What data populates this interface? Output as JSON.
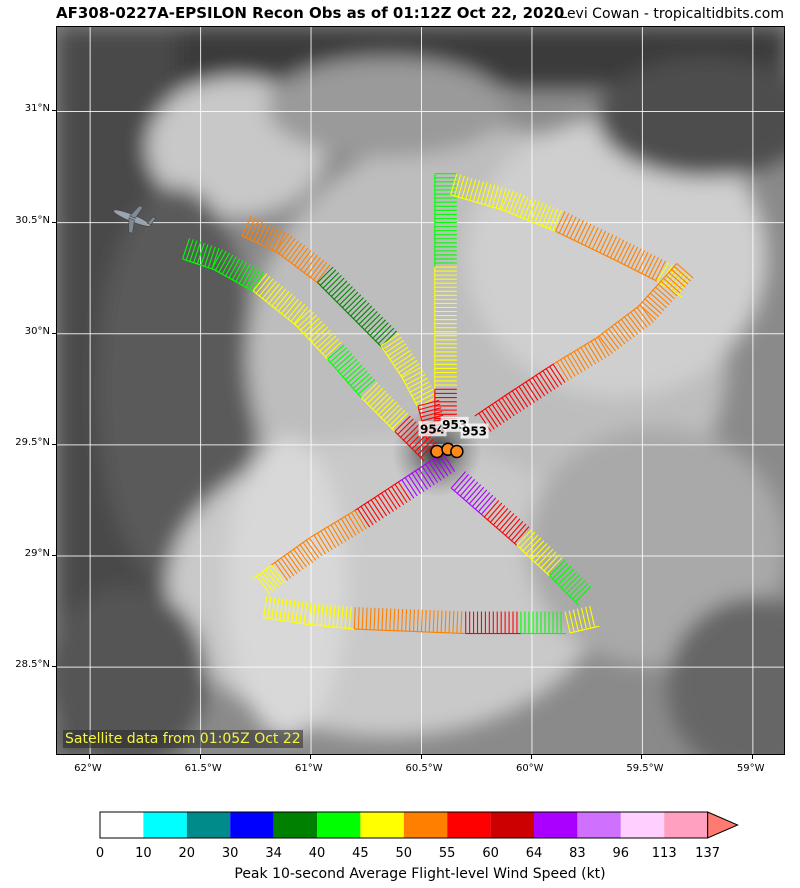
{
  "title": "AF308-0227A-EPSILON Recon Obs as of 01:12Z Oct 22, 2020",
  "credit": "Levi Cowan - tropicaltidbits.com",
  "satellite_note": "Satellite data from 01:05Z Oct 22",
  "map": {
    "lon_min": -62.15,
    "lon_max": -58.85,
    "lat_min": 28.1,
    "lat_max": 31.38,
    "lat_ticks": [
      {
        "v": 31,
        "label": "31°N"
      },
      {
        "v": 30.5,
        "label": "30.5°N"
      },
      {
        "v": 30,
        "label": "30°N"
      },
      {
        "v": 29.5,
        "label": "29.5°N"
      },
      {
        "v": 29,
        "label": "29°N"
      },
      {
        "v": 28.5,
        "label": "28.5°N"
      }
    ],
    "lon_ticks": [
      {
        "v": -62,
        "label": "62°W"
      },
      {
        "v": -61.5,
        "label": "61.5°W"
      },
      {
        "v": -61,
        "label": "61°W"
      },
      {
        "v": -60.5,
        "label": "60.5°W"
      },
      {
        "v": -60,
        "label": "60°W"
      },
      {
        "v": -59.5,
        "label": "59.5°W"
      },
      {
        "v": -59,
        "label": "59°W"
      }
    ],
    "grid": true,
    "center_pressure_labels": [
      {
        "text": "954",
        "lon": -60.45,
        "lat": 29.57
      },
      {
        "text": "953",
        "lon": -60.35,
        "lat": 29.59
      },
      {
        "text": "953",
        "lon": -60.26,
        "lat": 29.56
      }
    ],
    "dropsondes": [
      {
        "lon": -60.43,
        "lat": 29.47
      },
      {
        "lon": -60.38,
        "lat": 29.48
      },
      {
        "lon": -60.34,
        "lat": 29.47
      }
    ],
    "aircraft_icon": "recon-plane-icon",
    "aircraft": {
      "lon": -61.81,
      "lat": 30.52
    },
    "flight_legs": [
      {
        "name": "nw-leg-outer",
        "points": [
          [
            -61.55,
            30.43
          ],
          [
            -61.4,
            30.38
          ],
          [
            -61.2,
            30.27
          ],
          [
            -61.0,
            30.11
          ],
          [
            -60.85,
            29.95
          ],
          [
            -60.7,
            29.78
          ],
          [
            -60.55,
            29.63
          ],
          [
            -60.42,
            29.5
          ]
        ],
        "colors": [
          "#00ff00",
          "#00ff00",
          "#ffff00",
          "#ffff00",
          "#00ff00",
          "#ffff00",
          "#ff0000",
          "#aa00ff"
        ]
      },
      {
        "name": "nw-leg-inner",
        "points": [
          [
            -61.27,
            30.53
          ],
          [
            -61.1,
            30.45
          ],
          [
            -60.9,
            30.3
          ],
          [
            -60.75,
            30.15
          ],
          [
            -60.6,
            30.0
          ],
          [
            -60.5,
            29.85
          ],
          [
            -60.42,
            29.7
          ],
          [
            -60.38,
            29.55
          ]
        ],
        "colors": [
          "#ff8000",
          "#ff8000",
          "#008800",
          "#008800",
          "#ffff00",
          "#ffff00",
          "#ff0000",
          "#aa00ff"
        ]
      },
      {
        "name": "north-leg",
        "points": [
          [
            -60.34,
            30.72
          ],
          [
            -60.34,
            30.5
          ],
          [
            -60.34,
            30.3
          ],
          [
            -60.34,
            30.1
          ],
          [
            -60.34,
            29.9
          ],
          [
            -60.34,
            29.75
          ],
          [
            -60.34,
            29.6
          ]
        ],
        "colors": [
          "#00ff00",
          "#00ff00",
          "#ffff00",
          "#ffff00",
          "#ffff00",
          "#ff0000",
          "#aa00ff"
        ]
      },
      {
        "name": "ne-leg",
        "points": [
          [
            -60.34,
            30.72
          ],
          [
            -60.1,
            30.65
          ],
          [
            -59.85,
            30.55
          ],
          [
            -59.6,
            30.43
          ],
          [
            -59.38,
            30.32
          ],
          [
            -59.27,
            30.25
          ]
        ],
        "colors": [
          "#ffff00",
          "#ffff00",
          "#ff8000",
          "#ff8000",
          "#ffff00",
          "#ffff00"
        ]
      },
      {
        "name": "se-return-leg",
        "points": [
          [
            -59.27,
            30.25
          ],
          [
            -59.45,
            30.05
          ],
          [
            -59.65,
            29.9
          ],
          [
            -59.85,
            29.78
          ],
          [
            -60.05,
            29.65
          ],
          [
            -60.2,
            29.55
          ]
        ],
        "colors": [
          "#ff8000",
          "#ff8000",
          "#ff8000",
          "#ff0000",
          "#ff0000",
          "#aa00ff"
        ]
      },
      {
        "name": "sw-leg",
        "points": [
          [
            -60.35,
            29.38
          ],
          [
            -60.55,
            29.25
          ],
          [
            -60.75,
            29.12
          ],
          [
            -60.95,
            29.0
          ],
          [
            -61.12,
            28.88
          ],
          [
            -61.2,
            28.82
          ]
        ],
        "colors": [
          "#aa00ff",
          "#ff0000",
          "#ff8000",
          "#ff8000",
          "#ffff00",
          "#ffff00"
        ]
      },
      {
        "name": "south-leg",
        "points": [
          [
            -61.2,
            28.82
          ],
          [
            -61.0,
            28.79
          ],
          [
            -60.8,
            28.77
          ],
          [
            -60.55,
            28.76
          ],
          [
            -60.3,
            28.75
          ],
          [
            -60.05,
            28.75
          ],
          [
            -59.85,
            28.75
          ],
          [
            -59.72,
            28.78
          ]
        ],
        "colors": [
          "#ffff00",
          "#ffff00",
          "#ff8000",
          "#ff8000",
          "#ff0000",
          "#00ff00",
          "#ffff00",
          "#ff0000"
        ]
      },
      {
        "name": "se-leg",
        "points": [
          [
            -60.3,
            29.38
          ],
          [
            -60.15,
            29.25
          ],
          [
            -60.0,
            29.12
          ],
          [
            -59.85,
            28.98
          ],
          [
            -59.72,
            28.85
          ]
        ],
        "colors": [
          "#aa00ff",
          "#ff0000",
          "#ffff00",
          "#00ff00",
          "#aa00ff"
        ]
      }
    ]
  },
  "colorbar": {
    "title": "Peak 10-second Average Flight-level Wind Speed (kt)",
    "colors": [
      "#ffffff",
      "#00ffff",
      "#008b8b",
      "#0000ff",
      "#008000",
      "#00ff00",
      "#ffff00",
      "#ff8000",
      "#ff0000",
      "#cc0000",
      "#aa00ff",
      "#d070ff",
      "#ffd0ff",
      "#ffa0c0",
      "#ff7a70"
    ],
    "tick_labels": [
      "0",
      "10",
      "20",
      "30",
      "34",
      "40",
      "45",
      "50",
      "55",
      "60",
      "64",
      "83",
      "96",
      "113",
      "137"
    ]
  }
}
